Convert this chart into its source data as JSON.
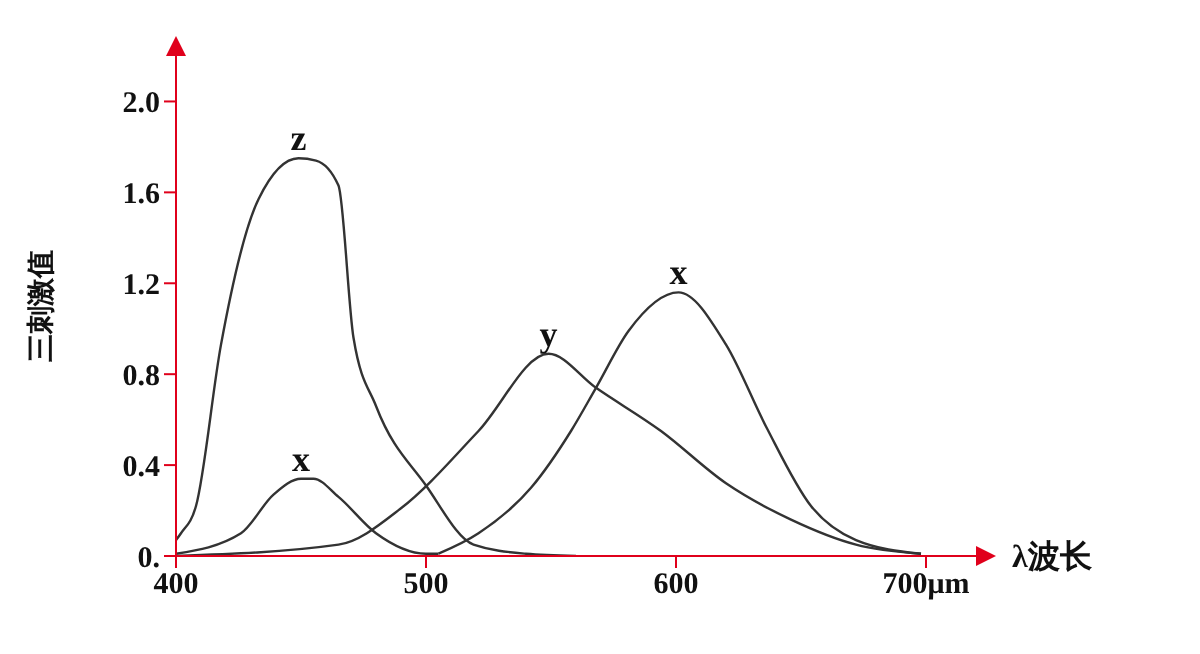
{
  "chart_data": {
    "type": "line",
    "xlabel": "λ波长",
    "ylabel": "三刺激值",
    "xlim": [
      400,
      720
    ],
    "ylim": [
      0,
      2.2
    ],
    "xticks": [
      400,
      500,
      600,
      {
        "value": 700,
        "label": "700μm"
      }
    ],
    "yticks": [
      {
        "value": 0,
        "label": "0."
      },
      0.4,
      0.8,
      1.2,
      1.6,
      {
        "value": 2,
        "label": "2.0"
      }
    ],
    "marker": "none",
    "line_style": "solid",
    "series": [
      {
        "name": "z",
        "color": "#333333",
        "x": [
          400,
          402,
          408,
          418,
          433,
          449,
          456,
          465,
          471,
          480,
          500,
          519,
          540,
          560
        ],
        "values": [
          0.07,
          0.1,
          0.22,
          0.93,
          1.57,
          1.75,
          1.74,
          1.63,
          0.96,
          0.66,
          0.31,
          0.05,
          0.01,
          0
        ]
      },
      {
        "name": "x",
        "color": "#333333",
        "x": [
          400,
          426,
          439,
          450,
          455,
          465,
          480,
          500,
          505
        ],
        "values": [
          0.01,
          0.1,
          0.27,
          0.34,
          0.34,
          0.26,
          0.1,
          0.01,
          0.01
        ]
      },
      {
        "name": "y",
        "color": "#333333",
        "x": [
          400,
          465,
          490,
          521,
          549,
          568,
          594,
          620,
          646,
          672,
          698
        ],
        "values": [
          0,
          0.05,
          0.21,
          0.55,
          0.89,
          0.74,
          0.55,
          0.32,
          0.16,
          0.05,
          0.01
        ]
      },
      {
        "name": "x",
        "color": "#333333",
        "x": [
          505,
          521,
          542,
          558,
          568,
          581,
          601,
          620,
          636,
          654,
          672,
          698
        ],
        "values": [
          0.01,
          0.1,
          0.3,
          0.55,
          0.74,
          0.99,
          1.16,
          0.93,
          0.57,
          0.22,
          0.07,
          0.01
        ]
      }
    ]
  }
}
